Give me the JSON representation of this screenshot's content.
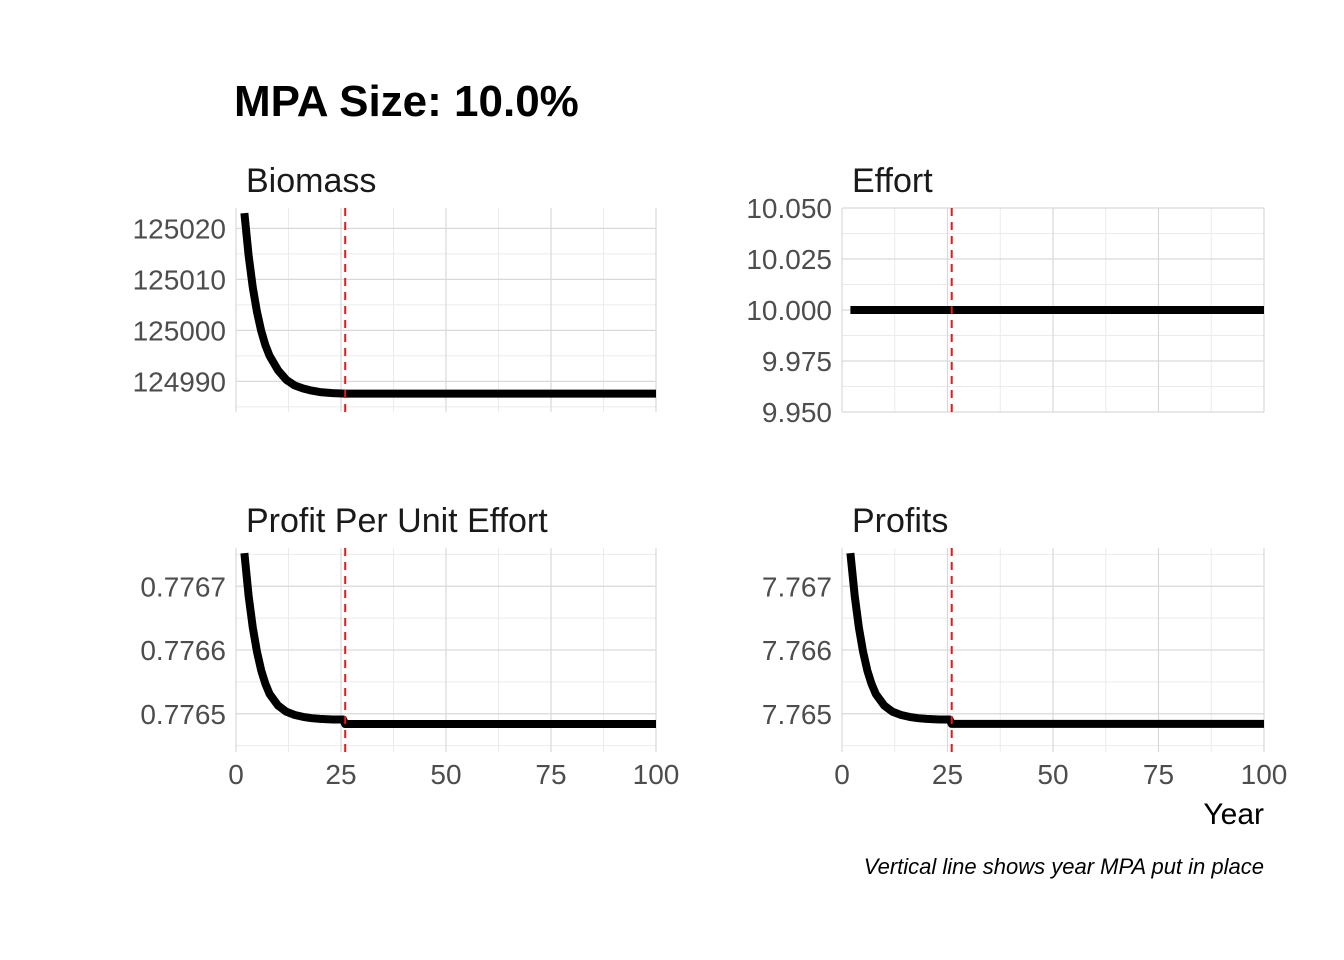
{
  "title": "MPA Size: 10.0%",
  "caption": "Vertical line shows year MPA put in place",
  "xlabel": "Year",
  "colors": {
    "series": "#000000",
    "mpa_line": "#e41a1c",
    "grid": "#d9d9d9"
  },
  "chart_data": [
    {
      "type": "line",
      "title": "Biomass",
      "xlim": [
        0,
        100
      ],
      "xticks": [
        0,
        25,
        50,
        75,
        100
      ],
      "ylim": [
        124984,
        125024
      ],
      "yticks": [
        124990,
        125000,
        125010,
        125020
      ],
      "ytick_labels": [
        "124990",
        "125000",
        "125010",
        "125020"
      ],
      "mpa_year": 26,
      "x": [
        2,
        3,
        4,
        5,
        6,
        7,
        8,
        10,
        12,
        14,
        16,
        18,
        20,
        23,
        26,
        30,
        40,
        50,
        60,
        70,
        80,
        90,
        100
      ],
      "y": [
        125023,
        125014.7,
        125008.4,
        125003.6,
        124999.9,
        124997.1,
        124995,
        124992.2,
        124990.3,
        124989.2,
        124988.6,
        124988.2,
        124987.9,
        124987.7,
        124987.6,
        124987.6,
        124987.6,
        124987.6,
        124987.6,
        124987.6,
        124987.6,
        124987.6,
        124987.6
      ]
    },
    {
      "type": "line",
      "title": "Effort",
      "xlim": [
        0,
        100
      ],
      "xticks": [
        0,
        25,
        50,
        75,
        100
      ],
      "ylim": [
        9.95,
        10.05
      ],
      "yticks": [
        9.95,
        9.975,
        10.0,
        10.025,
        10.05
      ],
      "ytick_labels": [
        "9.950",
        "9.975",
        "10.000",
        "10.025",
        "10.050"
      ],
      "mpa_year": 26,
      "x": [
        2,
        100
      ],
      "y": [
        10.0,
        10.0
      ]
    },
    {
      "type": "line",
      "title": "Profit Per Unit Effort",
      "xlim": [
        0,
        100
      ],
      "xticks": [
        0,
        25,
        50,
        75,
        100
      ],
      "xtick_labels": [
        "0",
        "25",
        "50",
        "75",
        "100"
      ],
      "ylim": [
        0.77644,
        0.77676
      ],
      "yticks": [
        0.7765,
        0.7766,
        0.7767
      ],
      "ytick_labels": [
        "0.7765",
        "0.7766",
        "0.7767"
      ],
      "mpa_year": 26,
      "x": [
        2,
        3,
        4,
        5,
        6,
        7,
        8,
        10,
        12,
        14,
        16,
        18,
        20,
        23,
        25.5,
        26,
        30,
        40,
        50,
        60,
        70,
        80,
        90,
        100
      ],
      "y": [
        0.776752,
        0.776685,
        0.776635,
        0.776597,
        0.776568,
        0.776547,
        0.776531,
        0.776513,
        0.776503,
        0.776498,
        0.776495,
        0.776493,
        0.776492,
        0.776491,
        0.776491,
        0.776484,
        0.776484,
        0.776484,
        0.776484,
        0.776484,
        0.776484,
        0.776484,
        0.776484,
        0.776484
      ]
    },
    {
      "type": "line",
      "title": "Profits",
      "xlim": [
        0,
        100
      ],
      "xticks": [
        0,
        25,
        50,
        75,
        100
      ],
      "xtick_labels": [
        "0",
        "25",
        "50",
        "75",
        "100"
      ],
      "ylim": [
        7.7644,
        7.7676
      ],
      "yticks": [
        7.765,
        7.766,
        7.767
      ],
      "ytick_labels": [
        "7.765",
        "7.766",
        "7.767"
      ],
      "mpa_year": 26,
      "x": [
        2,
        3,
        4,
        5,
        6,
        7,
        8,
        10,
        12,
        14,
        16,
        18,
        20,
        23,
        25.5,
        26,
        30,
        40,
        50,
        60,
        70,
        80,
        90,
        100
      ],
      "y": [
        7.76752,
        7.76685,
        7.76635,
        7.76597,
        7.76568,
        7.76547,
        7.76531,
        7.76513,
        7.76503,
        7.76498,
        7.76495,
        7.76493,
        7.76492,
        7.76491,
        7.76491,
        7.76484,
        7.76484,
        7.76484,
        7.76484,
        7.76484,
        7.76484,
        7.76484,
        7.76484,
        7.76484
      ]
    }
  ]
}
